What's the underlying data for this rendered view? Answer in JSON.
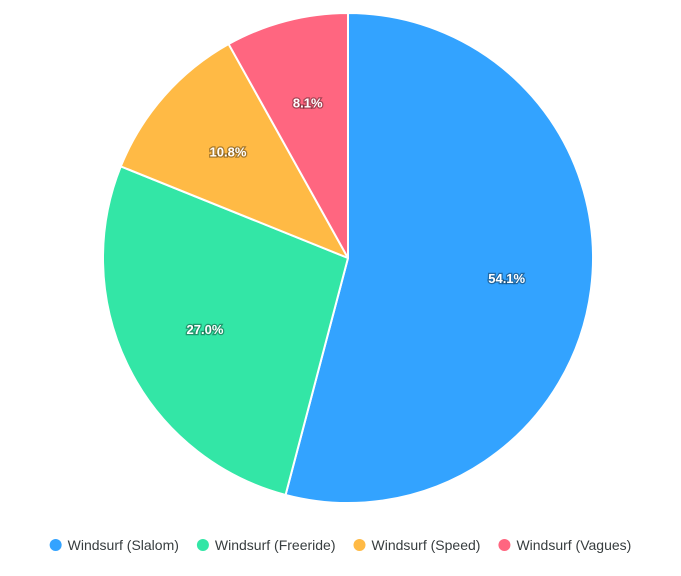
{
  "chart_data": {
    "type": "pie",
    "title": "",
    "categories": [
      "Windsurf (Slalom)",
      "Windsurf (Freeride)",
      "Windsurf (Speed)",
      "Windsurf (Vagues)"
    ],
    "values": [
      54.1,
      27.0,
      10.8,
      8.1
    ],
    "data_labels": [
      "54.1%",
      "27.0%",
      "10.8%",
      "8.1%"
    ],
    "colors": [
      "#33a3ff",
      "#33e6a6",
      "#ffba45",
      "#ff6680"
    ],
    "legend_placement": "bottom",
    "start_angle": "top, clockwise"
  }
}
